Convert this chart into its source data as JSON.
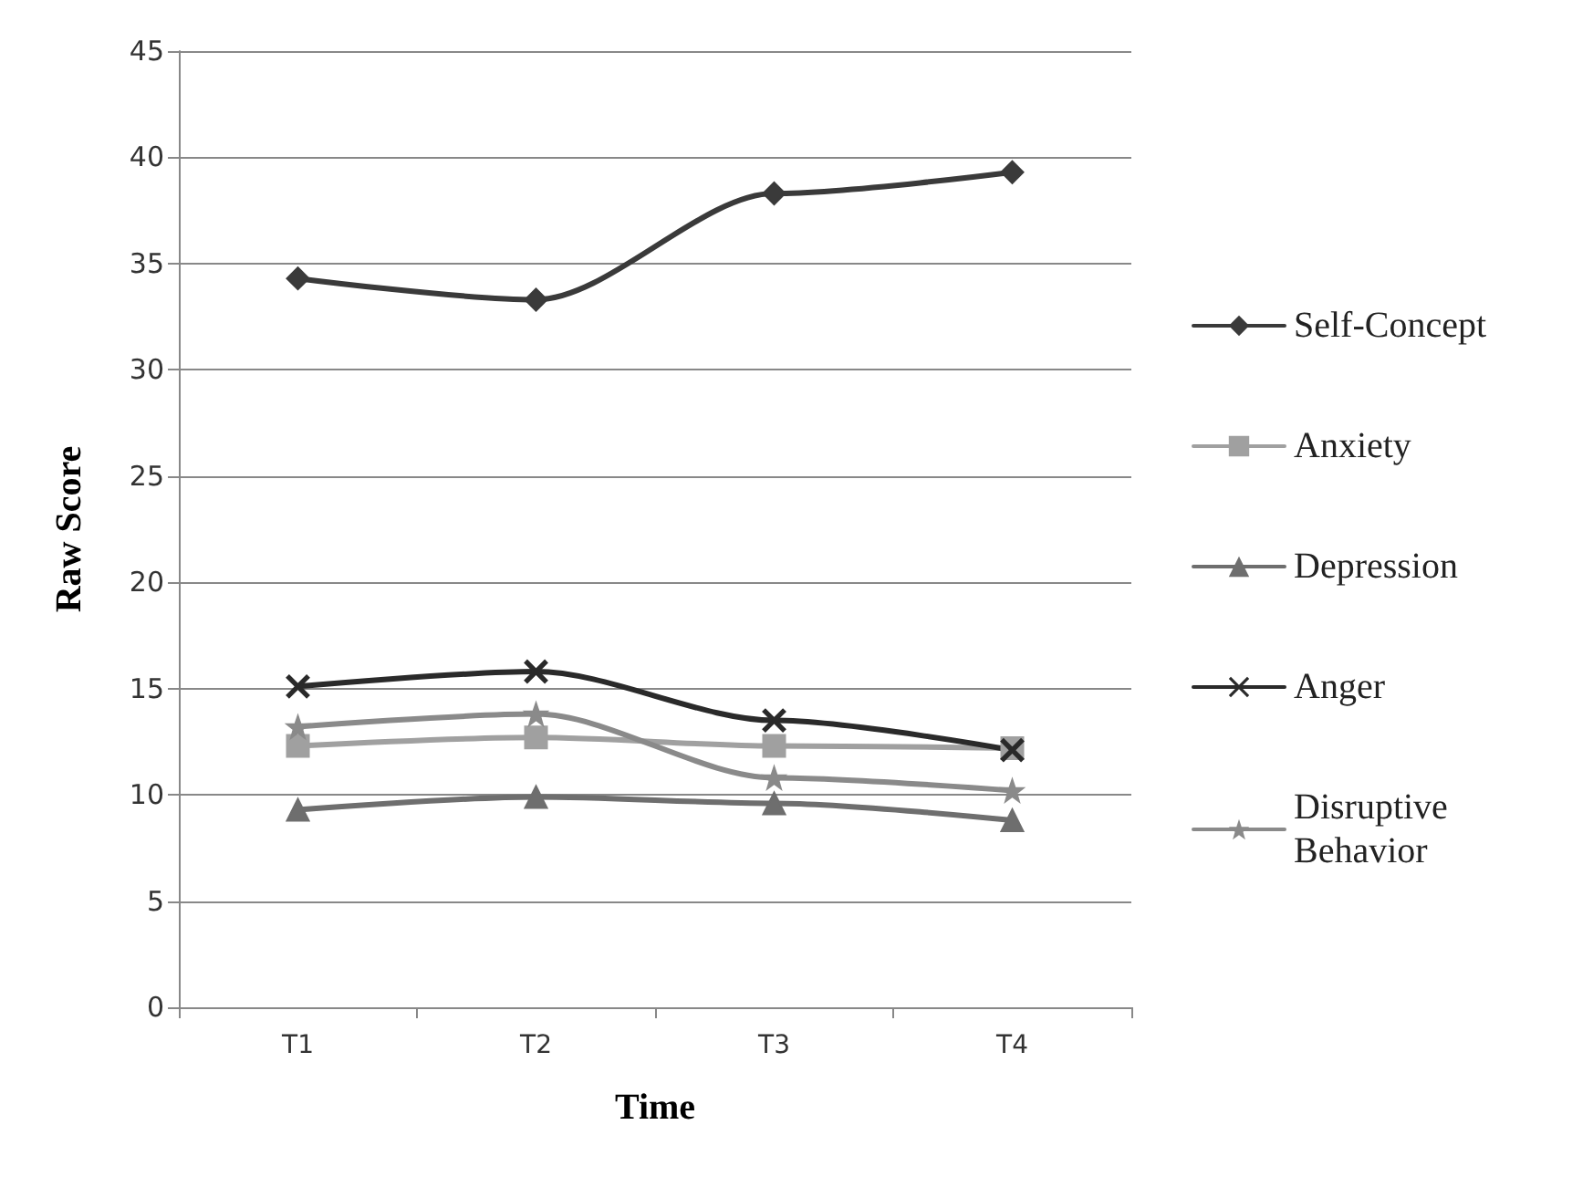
{
  "chart_data": {
    "type": "line",
    "xlabel": "Time",
    "ylabel": "Raw Score",
    "categories": [
      "T1",
      "T2",
      "T3",
      "T4"
    ],
    "ylim": [
      0,
      45
    ],
    "yticks": [
      0,
      5,
      10,
      15,
      20,
      25,
      30,
      35,
      40,
      45
    ],
    "grid": "y",
    "legend": "right",
    "line_style": "solid",
    "series": [
      {
        "name": "Self-Concept",
        "color": "#3a3a3a",
        "marker": "diamond",
        "values": [
          34.3,
          33.3,
          38.3,
          39.3
        ]
      },
      {
        "name": "Anxiety",
        "color": "#a0a0a0",
        "marker": "square",
        "values": [
          12.3,
          12.7,
          12.3,
          12.2
        ]
      },
      {
        "name": "Depression",
        "color": "#6e6e6e",
        "marker": "triangle",
        "values": [
          9.3,
          9.9,
          9.6,
          8.8
        ]
      },
      {
        "name": "Anger",
        "color": "#2a2a2a",
        "marker": "cross",
        "values": [
          15.1,
          15.8,
          13.5,
          12.1
        ]
      },
      {
        "name": "Disruptive Behavior",
        "color": "#8a8a8a",
        "marker": "star",
        "values": [
          13.2,
          13.8,
          10.8,
          10.2
        ]
      }
    ]
  }
}
